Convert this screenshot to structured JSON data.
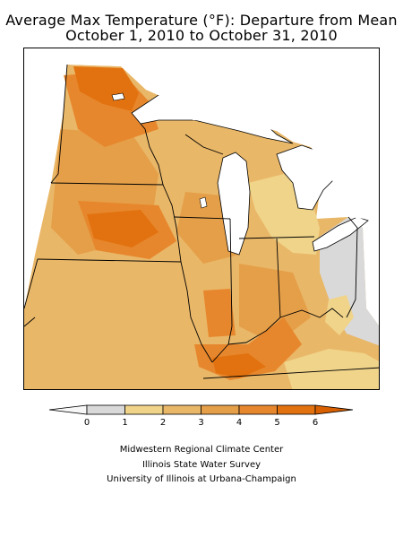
{
  "title": {
    "line1": "Average Max Temperature (°F): Departure from Mean",
    "line2": "October 1, 2010 to October 31, 2010"
  },
  "legend": {
    "ticks": [
      "0",
      "1",
      "2",
      "3",
      "4",
      "5",
      "6"
    ],
    "colors": {
      "below_0": "#f7f7f7",
      "0_1": "#d9d9d9",
      "1_2": "#f0d48a",
      "2_3": "#e9b768",
      "3_4": "#e59f48",
      "4_5": "#e7872d",
      "5_6": "#e2720f",
      "above_6": "#d86000"
    }
  },
  "map": {
    "water_color": "#ffffff",
    "border_color": "#000000"
  },
  "credits": [
    "Midwestern Regional Climate Center",
    "Illinois State Water Survey",
    "University of Illinois at Urbana-Champaign"
  ]
}
